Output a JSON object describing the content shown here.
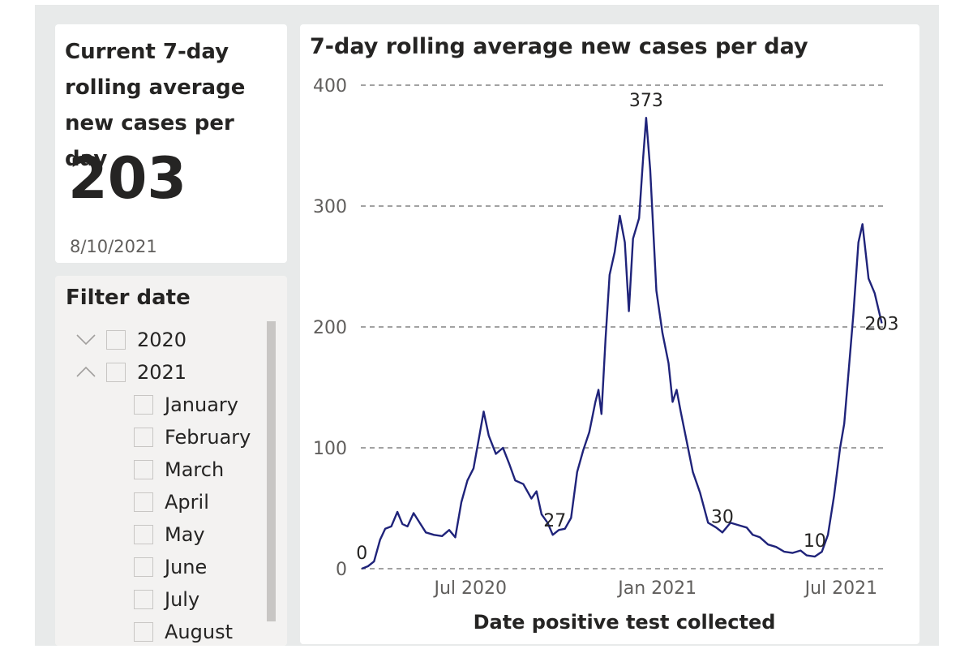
{
  "kpi": {
    "title": "Current 7-day rolling average new cases per day",
    "value": "203",
    "date": "8/10/2021"
  },
  "filter": {
    "title": "Filter date",
    "years": [
      {
        "label": "2020",
        "expanded": false,
        "checked": false
      },
      {
        "label": "2021",
        "expanded": true,
        "checked": false
      }
    ],
    "months": [
      "January",
      "February",
      "March",
      "April",
      "May",
      "June",
      "July",
      "August"
    ]
  },
  "colors": {
    "line": "#1f237a",
    "label_band": "#9a9fd0",
    "grid": "#6b6b6b",
    "background": "#e8eaea"
  },
  "chart_data": {
    "type": "line",
    "title": "7-day rolling average new cases per day",
    "xlabel": "Date positive test collected",
    "ylabel": "",
    "ylim": [
      0,
      400
    ],
    "yticks": [
      0,
      100,
      200,
      300,
      400
    ],
    "grid": true,
    "xlim": [
      "2020-03-15",
      "2021-08-12"
    ],
    "xticks": [
      {
        "date": "2020-07-01",
        "label": "Jul 2020"
      },
      {
        "date": "2021-01-01",
        "label": "Jan 2021"
      },
      {
        "date": "2021-07-01",
        "label": "Jul 2021"
      }
    ],
    "series": [
      {
        "points": [
          [
            "2020-03-16",
            0
          ],
          [
            "2020-03-22",
            2
          ],
          [
            "2020-03-28",
            6
          ],
          [
            "2020-04-03",
            24
          ],
          [
            "2020-04-08",
            33
          ],
          [
            "2020-04-14",
            35
          ],
          [
            "2020-04-20",
            47
          ],
          [
            "2020-04-25",
            37
          ],
          [
            "2020-04-30",
            35
          ],
          [
            "2020-05-06",
            46
          ],
          [
            "2020-05-12",
            38
          ],
          [
            "2020-05-18",
            30
          ],
          [
            "2020-05-26",
            28
          ],
          [
            "2020-06-03",
            27
          ],
          [
            "2020-06-10",
            32
          ],
          [
            "2020-06-16",
            26
          ],
          [
            "2020-06-22",
            55
          ],
          [
            "2020-06-28",
            73
          ],
          [
            "2020-07-04",
            83
          ],
          [
            "2020-07-10",
            111
          ],
          [
            "2020-07-14",
            130
          ],
          [
            "2020-07-19",
            110
          ],
          [
            "2020-07-26",
            95
          ],
          [
            "2020-08-02",
            100
          ],
          [
            "2020-08-08",
            87
          ],
          [
            "2020-08-14",
            73
          ],
          [
            "2020-08-22",
            70
          ],
          [
            "2020-08-30",
            58
          ],
          [
            "2020-09-04",
            64
          ],
          [
            "2020-09-09",
            45
          ],
          [
            "2020-09-15",
            38
          ],
          [
            "2020-09-20",
            28
          ],
          [
            "2020-09-26",
            32
          ],
          [
            "2020-10-02",
            33
          ],
          [
            "2020-10-08",
            42
          ],
          [
            "2020-10-14",
            80
          ],
          [
            "2020-10-20",
            98
          ],
          [
            "2020-10-26",
            113
          ],
          [
            "2020-11-01",
            138
          ],
          [
            "2020-11-04",
            148
          ],
          [
            "2020-11-07",
            128
          ],
          [
            "2020-11-11",
            190
          ],
          [
            "2020-11-15",
            243
          ],
          [
            "2020-11-20",
            262
          ],
          [
            "2020-11-25",
            292
          ],
          [
            "2020-11-30",
            270
          ],
          [
            "2020-12-04",
            213
          ],
          [
            "2020-12-08",
            273
          ],
          [
            "2020-12-14",
            290
          ],
          [
            "2020-12-18",
            340
          ],
          [
            "2020-12-21",
            373
          ],
          [
            "2020-12-25",
            330
          ],
          [
            "2020-12-31",
            230
          ],
          [
            "2021-01-06",
            195
          ],
          [
            "2021-01-12",
            170
          ],
          [
            "2021-01-16",
            138
          ],
          [
            "2021-01-20",
            148
          ],
          [
            "2021-01-24",
            130
          ],
          [
            "2021-01-30",
            105
          ],
          [
            "2021-02-05",
            80
          ],
          [
            "2021-02-12",
            63
          ],
          [
            "2021-02-20",
            38
          ],
          [
            "2021-02-28",
            34
          ],
          [
            "2021-03-06",
            30
          ],
          [
            "2021-03-14",
            38
          ],
          [
            "2021-03-22",
            36
          ],
          [
            "2021-03-30",
            34
          ],
          [
            "2021-04-05",
            28
          ],
          [
            "2021-04-12",
            26
          ],
          [
            "2021-04-20",
            20
          ],
          [
            "2021-04-28",
            18
          ],
          [
            "2021-05-06",
            14
          ],
          [
            "2021-05-14",
            13
          ],
          [
            "2021-05-22",
            15
          ],
          [
            "2021-05-28",
            11
          ],
          [
            "2021-06-05",
            10
          ],
          [
            "2021-06-12",
            14
          ],
          [
            "2021-06-18",
            28
          ],
          [
            "2021-06-24",
            60
          ],
          [
            "2021-06-30",
            100
          ],
          [
            "2021-07-04",
            120
          ],
          [
            "2021-07-08",
            160
          ],
          [
            "2021-07-13",
            210
          ],
          [
            "2021-07-18",
            270
          ],
          [
            "2021-07-22",
            285
          ],
          [
            "2021-07-28",
            240
          ],
          [
            "2021-08-03",
            228
          ],
          [
            "2021-08-10",
            203
          ]
        ]
      }
    ],
    "data_labels": [
      {
        "date": "2020-03-16",
        "value": 0,
        "label": "0"
      },
      {
        "date": "2020-09-22",
        "value": 27,
        "label": "27"
      },
      {
        "date": "2020-12-21",
        "value": 373,
        "label": "373"
      },
      {
        "date": "2021-03-06",
        "value": 30,
        "label": "30"
      },
      {
        "date": "2021-06-05",
        "value": 10,
        "label": "10"
      },
      {
        "date": "2021-08-10",
        "value": 203,
        "label": "203"
      }
    ]
  }
}
